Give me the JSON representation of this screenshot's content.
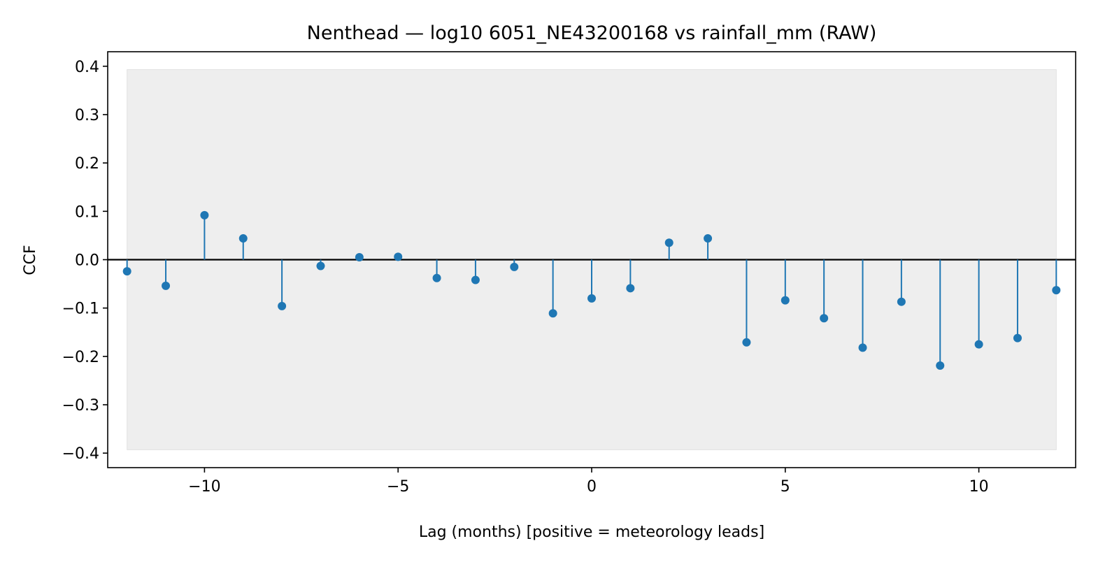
{
  "chart_data": {
    "type": "stem",
    "title": "Nenthead — log10 6051_NE43200168 vs rainfall_mm (RAW)",
    "xlabel": "Lag (months)  [positive = meteorology leads]",
    "ylabel": "CCF",
    "xlim": [
      -12.5,
      12.5
    ],
    "ylim": [
      -0.43,
      0.43
    ],
    "xticks": [
      -10,
      -5,
      0,
      5,
      10
    ],
    "xtick_labels": [
      "−10",
      "−5",
      "0",
      "5",
      "10"
    ],
    "yticks": [
      -0.4,
      -0.3,
      -0.2,
      -0.1,
      0.0,
      0.1,
      0.2,
      0.3,
      0.4
    ],
    "ytick_labels": [
      "−0.4",
      "−0.3",
      "−0.2",
      "−0.1",
      "0.0",
      "0.1",
      "0.2",
      "0.3",
      "0.4"
    ],
    "confidence_band": {
      "lower": -0.393,
      "upper": 0.393,
      "x_range": [
        -12,
        12
      ],
      "color": "#eeeeee"
    },
    "zero_line": true,
    "grid": false,
    "legend": "none",
    "series": [
      {
        "color": "#1f77b4",
        "x": [
          -12,
          -11,
          -10,
          -9,
          -8,
          -7,
          -6,
          -5,
          -4,
          -3,
          -2,
          -1,
          0,
          1,
          2,
          3,
          4,
          5,
          6,
          7,
          8,
          9,
          10,
          11,
          12
        ],
        "values": [
          -0.024,
          -0.054,
          0.092,
          0.044,
          -0.096,
          -0.013,
          0.005,
          0.006,
          -0.038,
          -0.042,
          -0.015,
          -0.111,
          -0.08,
          -0.059,
          0.035,
          0.044,
          -0.171,
          -0.084,
          -0.121,
          -0.182,
          -0.087,
          -0.219,
          -0.175,
          -0.162,
          -0.063
        ]
      }
    ]
  }
}
